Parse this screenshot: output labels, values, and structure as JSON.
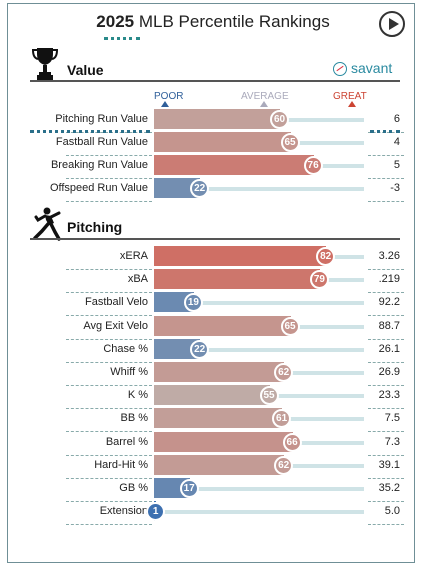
{
  "title": {
    "year": "2025",
    "rest": "MLB Percentile Rankings"
  },
  "savant_label": "savant",
  "scale": {
    "poor": "POOR",
    "average": "AVERAGE",
    "great": "GREAT"
  },
  "colors": {
    "poor": "#3a6fb0",
    "average": "#bcb6b2",
    "great": "#d9473a",
    "track": "#cfe3e6"
  },
  "sections": [
    {
      "title": "Value",
      "icon": "trophy-icon",
      "rows": [
        {
          "label": "Pitching Run Value",
          "pct": 60,
          "value": "6"
        },
        {
          "label": "Fastball Run Value",
          "pct": 65,
          "value": "4"
        },
        {
          "label": "Breaking Run Value",
          "pct": 76,
          "value": "5"
        },
        {
          "label": "Offspeed Run Value",
          "pct": 22,
          "value": "-3"
        }
      ]
    },
    {
      "title": "Pitching",
      "icon": "pitcher-icon",
      "rows": [
        {
          "label": "xERA",
          "pct": 82,
          "value": "3.26"
        },
        {
          "label": "xBA",
          "pct": 79,
          "value": ".219"
        },
        {
          "label": "Fastball Velo",
          "pct": 19,
          "value": "92.2"
        },
        {
          "label": "Avg Exit Velo",
          "pct": 65,
          "value": "88.7"
        },
        {
          "label": "Chase %",
          "pct": 22,
          "value": "26.1"
        },
        {
          "label": "Whiff %",
          "pct": 62,
          "value": "26.9"
        },
        {
          "label": "K %",
          "pct": 55,
          "value": "23.3"
        },
        {
          "label": "BB %",
          "pct": 61,
          "value": "7.5"
        },
        {
          "label": "Barrel %",
          "pct": 66,
          "value": "7.3"
        },
        {
          "label": "Hard-Hit %",
          "pct": 62,
          "value": "39.1"
        },
        {
          "label": "GB %",
          "pct": 17,
          "value": "35.2"
        },
        {
          "label": "Extension",
          "pct": 1,
          "value": "5.0"
        }
      ]
    }
  ]
}
